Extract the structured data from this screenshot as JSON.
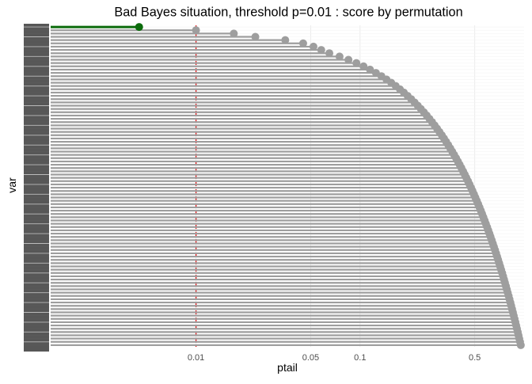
{
  "chart_data": {
    "type": "lollipop",
    "title": "Bad Bayes situation, threshold p=0.01 : score by permutation",
    "xlabel": "ptail",
    "ylabel": "var",
    "x_scale": "log10",
    "xlim": [
      0.0013,
      1.0
    ],
    "x_ticks": [
      0.01,
      0.05,
      0.1,
      0.5
    ],
    "x_tick_labels": [
      "0.01",
      "0.05",
      "0.1",
      "0.5"
    ],
    "threshold": 0.01,
    "grid": true,
    "series": [
      {
        "values": [
          0.0045
        ],
        "color": "#0b6b0b"
      },
      {
        "values": [
          0.01,
          0.017,
          0.023,
          0.035,
          0.045,
          0.052,
          0.058,
          0.065,
          0.075,
          0.085,
          0.095,
          0.105,
          0.115,
          0.125,
          0.135,
          0.145,
          0.155,
          0.165,
          0.175,
          0.185,
          0.195,
          0.205,
          0.215,
          0.225,
          0.235,
          0.245,
          0.255,
          0.265,
          0.275,
          0.285,
          0.295,
          0.305,
          0.315,
          0.325,
          0.335,
          0.345,
          0.355,
          0.365,
          0.375,
          0.385,
          0.395,
          0.405,
          0.415,
          0.425,
          0.435,
          0.445,
          0.455,
          0.465,
          0.475,
          0.485,
          0.495,
          0.505,
          0.515,
          0.525,
          0.535,
          0.545,
          0.555,
          0.565,
          0.575,
          0.585,
          0.595,
          0.605,
          0.615,
          0.625,
          0.635,
          0.645,
          0.655,
          0.665,
          0.675,
          0.685,
          0.695,
          0.705,
          0.715,
          0.725,
          0.735,
          0.745,
          0.755,
          0.765,
          0.775,
          0.785,
          0.795,
          0.805,
          0.815,
          0.825,
          0.835,
          0.845,
          0.855,
          0.865,
          0.875,
          0.885,
          0.895,
          0.905,
          0.915,
          0.925,
          0.935,
          0.945,
          0.955
        ],
        "color": "#9e9e9e"
      }
    ],
    "colors": {
      "threshold_line": "#e0191b",
      "axis_text": "#4d4d4d",
      "title": "#000000"
    }
  }
}
